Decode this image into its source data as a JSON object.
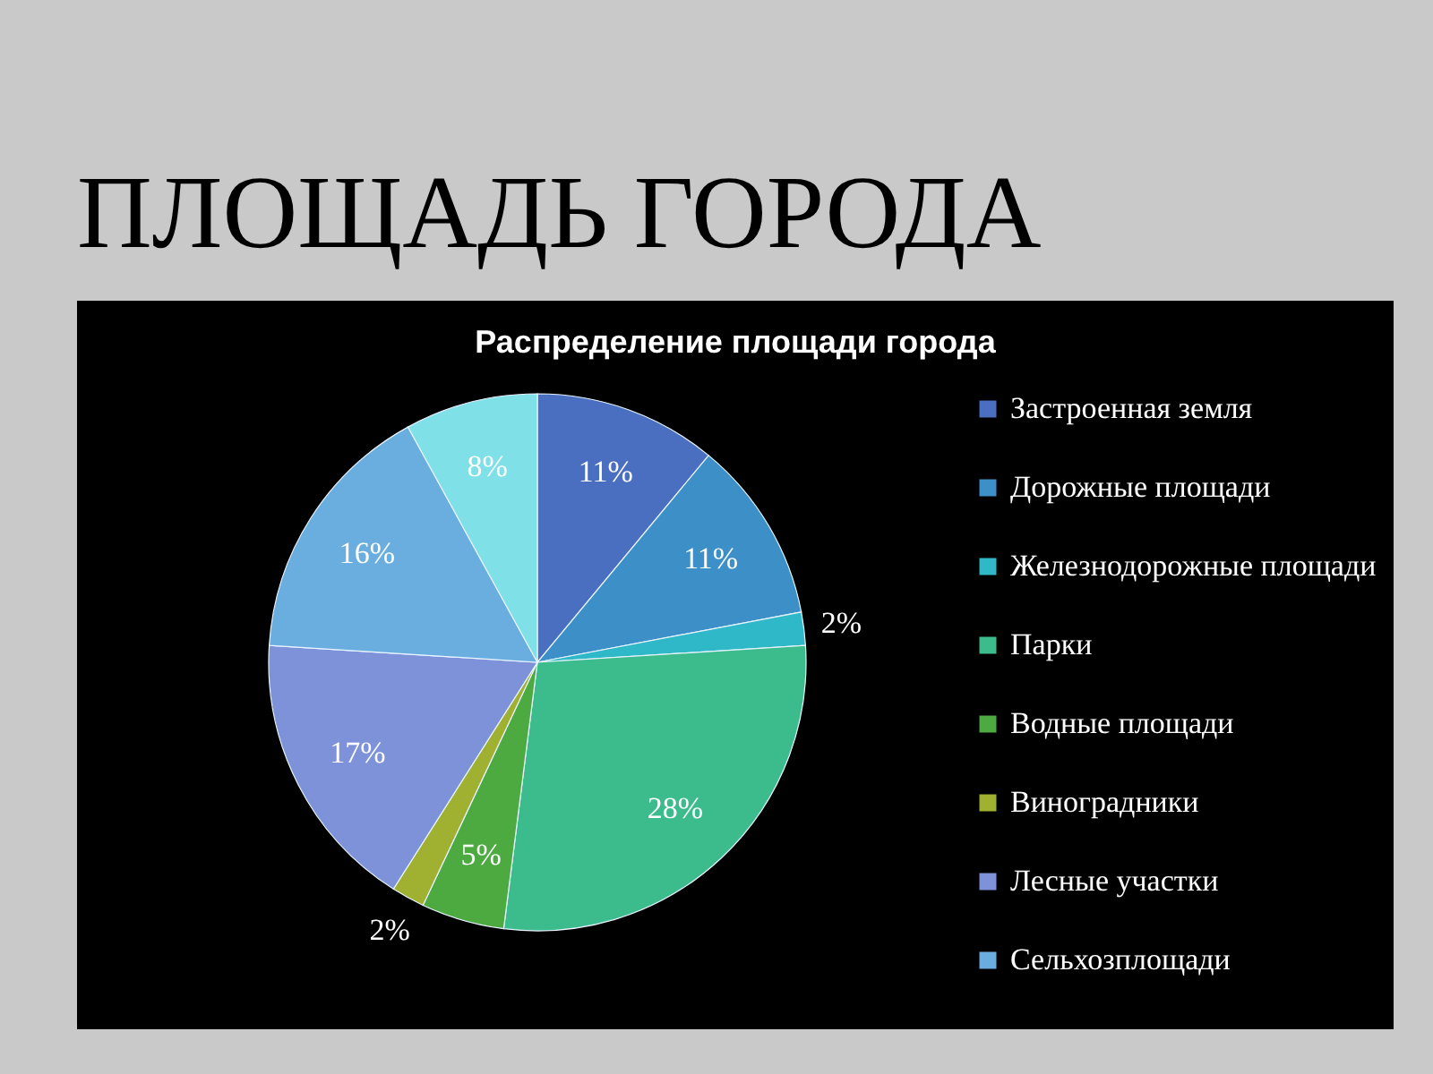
{
  "chart_data": {
    "type": "pie",
    "title": "ПЛОЩАДЬ ГОРОДА",
    "subtitle": "Распределение площади города",
    "categories": [
      "Застроенная земля",
      "Дорожные площади",
      "Железнодорожные площади",
      "Парки",
      "Водные площади",
      "Виноградники",
      "Лесные участки",
      "Сельхозплощади",
      null
    ],
    "values": [
      11,
      11,
      2,
      28,
      5,
      2,
      17,
      16,
      8
    ],
    "colors": [
      "#4a6fc0",
      "#3d8fc8",
      "#2fb8c8",
      "#3cbc8c",
      "#4caa40",
      "#a0b030",
      "#7d92d8",
      "#6aaee0",
      "#80e0e8"
    ],
    "value_labels": [
      "11%",
      "11%",
      "2%",
      "28%",
      "5%",
      "2%",
      "17%",
      "16%",
      "8%"
    ],
    "legend": "right"
  }
}
